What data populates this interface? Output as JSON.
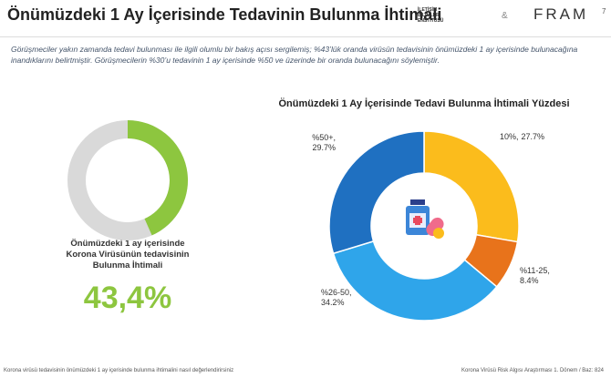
{
  "header": {
    "title": "Önümüzdeki 1 Ay İçerisinde Tedavinin Bulunma İhtimali",
    "page_number": "7",
    "logo_left": "İLETİŞİM BİLİMLERİ ENSTİTÜSÜ",
    "logo_sep": "&",
    "logo_right": "FRAM"
  },
  "paragraph": "Görüşmeciler yakın zamanda tedavi bulunması ile ilgili olumlu bir bakış açısı sergilemiş; %43’lük oranda virüsün tedavisinin önümüzdeki 1 ay içerisinde bulunacağına inandıklarını belirtmiştir. Görüşmecilerin %30’u tedavinin 1 ay içerisinde %50 ve üzerinde bir oranda bulunacağını söylemiştir.",
  "footer": {
    "left": "Korona virüsü tedavisinin önümüzdeki 1 ay içerisinde bulunma ihtimalini nasıl değerlendirirsiniz",
    "right": "Korona Virüsü Risk Algısı Araştırması 1. Dönem / Baz: 824"
  },
  "chart_data": [
    {
      "type": "gauge",
      "title": "Önümüzdeki 1 ay içerisinde Korona Virüsünün tedavisinin Bulunma İhtimali",
      "values": [
        43.4
      ],
      "value_labels": [
        "43,4%"
      ],
      "color": "#8dc63f",
      "track_color": "#d9d9d9"
    },
    {
      "type": "donut",
      "title": "Önümüzdeki 1 Ay İçerisinde Tedavi Bulunma İhtimali Yüzdesi",
      "categories": [
        "10%,",
        "%11-25,",
        "%26-50,",
        "%50+,"
      ],
      "values": [
        27.7,
        8.4,
        34.2,
        29.7
      ],
      "value_labels": [
        "27.7%",
        "8.4%",
        "34.2%",
        "29.7%"
      ],
      "colors": [
        "#fbbc1c",
        "#e8731b",
        "#2fa5ea",
        "#1f70c1"
      ]
    }
  ]
}
